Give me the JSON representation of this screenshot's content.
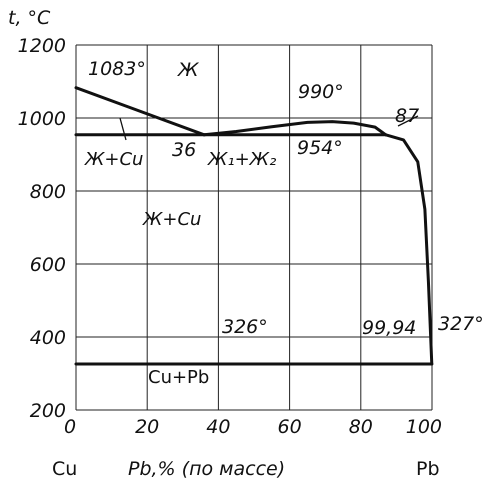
{
  "chart_data": {
    "type": "line",
    "title": "",
    "ylabel": "t, °C",
    "xlabel": "Pb,% (по массе)",
    "x_end_labels": {
      "left": "Cu",
      "right": "Pb"
    },
    "xlim": [
      0,
      100
    ],
    "ylim": [
      200,
      1200
    ],
    "x_ticks": [
      0,
      20,
      40,
      60,
      80,
      100
    ],
    "y_ticks": [
      200,
      400,
      600,
      800,
      1000,
      1200
    ],
    "grid": true,
    "series": [
      {
        "name": "",
        "role": "liquidus_cu",
        "points": [
          [
            0,
            1083
          ],
          [
            36,
            954
          ]
        ]
      },
      {
        "name": "",
        "role": "miscibility_gap",
        "points": [
          [
            36,
            954
          ],
          [
            45,
            963
          ],
          [
            55,
            976
          ],
          [
            65,
            988
          ],
          [
            72,
            990
          ],
          [
            78,
            986
          ],
          [
            84,
            975
          ],
          [
            87,
            954
          ]
        ]
      },
      {
        "name": "",
        "role": "liquidus_pb",
        "points": [
          [
            87,
            954
          ],
          [
            92,
            940
          ],
          [
            96,
            880
          ],
          [
            98,
            750
          ],
          [
            99,
            550
          ],
          [
            99.94,
            326
          ]
        ]
      },
      {
        "name": "",
        "role": "monotectic",
        "points": [
          [
            0,
            954
          ],
          [
            87,
            954
          ]
        ]
      },
      {
        "name": "",
        "role": "eutectic",
        "points": [
          [
            0,
            326
          ],
          [
            99.94,
            326
          ]
        ]
      }
    ],
    "annotations": [
      {
        "text": "1083°",
        "x": 0,
        "y": 1083
      },
      {
        "text": "Ж",
        "x": 33,
        "y": 1080
      },
      {
        "text": "990°",
        "x": 72,
        "y": 990
      },
      {
        "text": "87",
        "x": 87,
        "y": 954
      },
      {
        "text": "36",
        "x": 36,
        "y": 954
      },
      {
        "text": "954°",
        "x": 75,
        "y": 954
      },
      {
        "text": "Ж+Cu",
        "x": 10,
        "y": 954
      },
      {
        "text": "Ж₁+Ж₂",
        "x": 50,
        "y": 954
      },
      {
        "text": "Ж+Cu",
        "x": 30,
        "y": 750
      },
      {
        "text": "326°",
        "x": 50,
        "y": 326
      },
      {
        "text": "99,94",
        "x": 99.94,
        "y": 326
      },
      {
        "text": "327°",
        "x": 100,
        "y": 327
      },
      {
        "text": "Cu+Pb",
        "x": 30,
        "y": 260
      }
    ]
  }
}
